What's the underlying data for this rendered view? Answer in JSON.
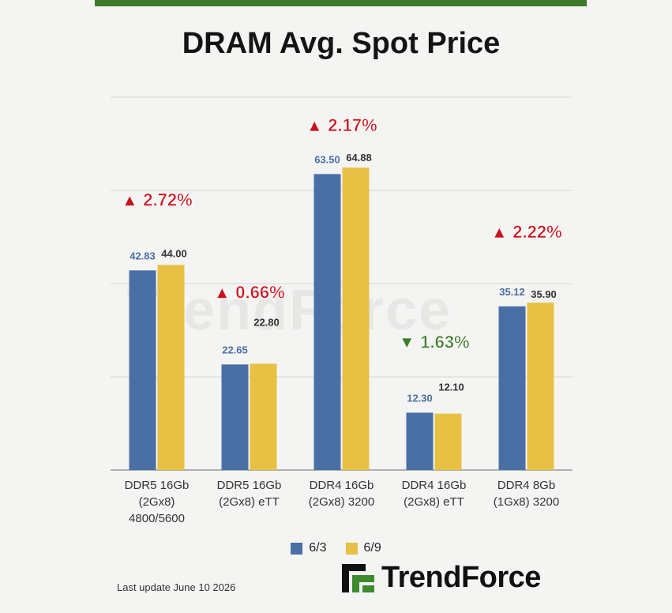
{
  "header": {
    "title": "DRAM Avg. Spot Price"
  },
  "colors": {
    "series_a": "#4a6fa5",
    "series_b": "#e8c044",
    "up": "#c8141e",
    "down": "#3f7d2a",
    "accent_bar": "#3d7a2b"
  },
  "chart_data": {
    "type": "bar",
    "title": "DRAM Avg. Spot Price",
    "categories": [
      [
        "DDR5 16Gb",
        "(2Gx8)",
        "4800/5600"
      ],
      [
        "DDR5 16Gb",
        "(2Gx8) eTT"
      ],
      [
        "DDR4 16Gb",
        "(2Gx8) 3200"
      ],
      [
        "DDR4 16Gb",
        "(2Gx8) eTT"
      ],
      [
        "DDR4 8Gb",
        "(1Gx8) 3200"
      ]
    ],
    "series": [
      {
        "name": "6/3",
        "values": [
          42.83,
          22.65,
          63.5,
          12.3,
          35.12
        ],
        "labels": [
          "42.83",
          "22.65",
          "63.50",
          "12.30",
          "35.12"
        ]
      },
      {
        "name": "6/9",
        "values": [
          44.0,
          22.8,
          64.88,
          12.1,
          35.9
        ],
        "labels": [
          "44.00",
          "22.80",
          "64.88",
          "12.10",
          "35.90"
        ]
      }
    ],
    "changes": [
      {
        "direction": "up",
        "text": "2.72%"
      },
      {
        "direction": "up",
        "text": "0.66%"
      },
      {
        "direction": "up",
        "text": "2.17%"
      },
      {
        "direction": "down",
        "text": "1.63%"
      },
      {
        "direction": "up",
        "text": "2.22%"
      }
    ],
    "ylim": [
      0,
      80
    ],
    "gridlines": [
      0,
      20,
      40,
      60,
      80
    ],
    "grid": true,
    "legend_position": "bottom"
  },
  "legend": {
    "series_a": "6/3",
    "series_b": "6/9"
  },
  "footer": {
    "last_update": "Last update  June 10  2026"
  },
  "logo": {
    "text": "TrendForce"
  }
}
